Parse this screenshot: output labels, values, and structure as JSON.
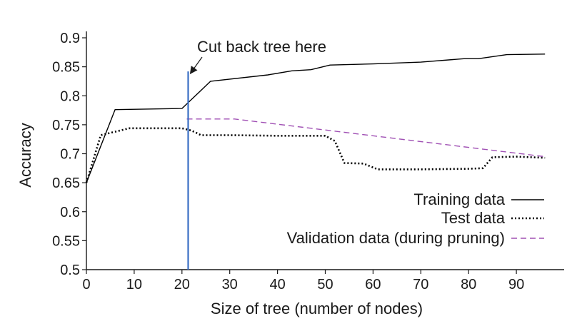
{
  "chart_data": {
    "type": "line",
    "title": "",
    "xlabel": "Size of tree (number of nodes)",
    "ylabel": "Accuracy",
    "xlim": [
      0,
      100
    ],
    "ylim": [
      0.5,
      0.9
    ],
    "xticks": [
      0,
      10,
      20,
      30,
      40,
      50,
      60,
      70,
      80,
      90
    ],
    "xtick_labels": [
      "0",
      "10",
      "20",
      "30",
      "40",
      "50",
      "60",
      "70",
      "80",
      "90"
    ],
    "yticks": [
      0.5,
      0.55,
      0.6,
      0.65,
      0.7,
      0.75,
      0.8,
      0.85,
      0.9
    ],
    "ytick_labels": [
      "0.5",
      "0.55",
      "0.6",
      "0.65",
      "0.7",
      "0.75",
      "0.8",
      "0.85",
      "0.9"
    ],
    "grid": false,
    "legend_position": "bottom-right",
    "series": [
      {
        "name": "Training data",
        "style": "solid",
        "color": "#000000",
        "x": [
          0,
          6,
          20,
          26,
          38,
          43,
          47,
          51,
          60,
          70,
          79,
          82,
          88,
          96
        ],
        "y": [
          0.65,
          0.776,
          0.778,
          0.825,
          0.836,
          0.843,
          0.845,
          0.853,
          0.855,
          0.858,
          0.864,
          0.864,
          0.871,
          0.872
        ]
      },
      {
        "name": "Test data",
        "style": "dotted",
        "color": "#000000",
        "x": [
          0,
          3,
          9,
          20,
          22,
          24,
          30,
          40,
          50,
          52,
          54,
          58,
          61,
          63,
          70,
          80,
          83,
          85,
          90,
          96
        ],
        "y": [
          0.65,
          0.732,
          0.744,
          0.744,
          0.74,
          0.732,
          0.732,
          0.731,
          0.731,
          0.722,
          0.684,
          0.683,
          0.673,
          0.673,
          0.673,
          0.674,
          0.675,
          0.694,
          0.695,
          0.693
        ]
      },
      {
        "name": "Validation data (during pruning)",
        "style": "dashed",
        "color": "#a050b4",
        "x": [
          21,
          31,
          96
        ],
        "y": [
          0.76,
          0.76,
          0.695
        ]
      }
    ],
    "annotations": [
      {
        "text": "Cut back tree here",
        "x": 21.3,
        "y_top": 0.842,
        "line_color": "#3a6fc4"
      }
    ]
  }
}
